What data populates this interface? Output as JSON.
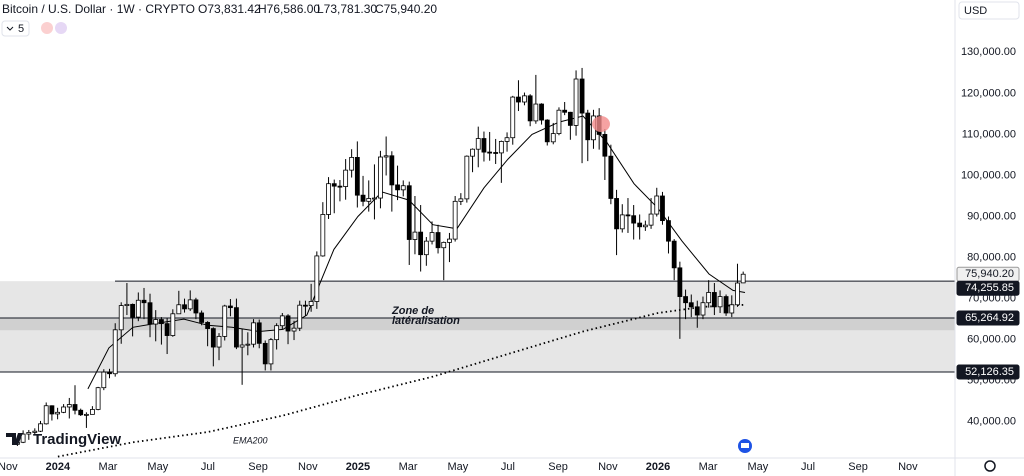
{
  "chart_data": {
    "type": "candlestick",
    "title": "Bitcoin / U.S. Dollar · 1W · CRYPTO",
    "ohlc_legend": [
      "O73,831.42",
      "H76,586.00",
      "L73,781.30",
      "C75,940.20"
    ],
    "indicator_count": 5,
    "currency": "USD",
    "brand": "TradingView",
    "zone_label": [
      "Zone de",
      "latéralisation"
    ],
    "up_color": "#ffffff",
    "down_color": "#000000",
    "x": [
      2023.865,
      2023.884,
      2023.903,
      2023.923,
      2023.942,
      2023.961,
      2023.98,
      2023.999,
      2024.019,
      2024.038,
      2024.057,
      2024.076,
      2024.095,
      2024.115,
      2024.134,
      2024.153,
      2024.172,
      2024.191,
      2024.211,
      2024.23,
      2024.249,
      2024.268,
      2024.287,
      2024.307,
      2024.326,
      2024.345,
      2024.364,
      2024.383,
      2024.403,
      2024.422,
      2024.441,
      2024.46,
      2024.479,
      2024.499,
      2024.518,
      2024.537,
      2024.556,
      2024.575,
      2024.595,
      2024.614,
      2024.633,
      2024.652,
      2024.671,
      2024.691,
      2024.71,
      2024.729,
      2024.748,
      2024.767,
      2024.787,
      2024.806,
      2024.825,
      2024.844,
      2024.863,
      2024.883,
      2024.902,
      2024.921,
      2024.94,
      2024.959,
      2024.979,
      2024.998,
      2025.017,
      2025.036,
      2025.055,
      2025.075,
      2025.094,
      2025.113,
      2025.132,
      2025.151,
      2025.171,
      2025.19,
      2025.209,
      2025.228,
      2025.247,
      2025.267,
      2025.286,
      2025.305,
      2025.324,
      2025.343,
      2025.363,
      2025.382,
      2025.401,
      2025.42,
      2025.439,
      2025.459,
      2025.478,
      2025.497,
      2025.516,
      2025.535,
      2025.555,
      2025.574,
      2025.593,
      2025.612,
      2025.631,
      2025.651,
      2025.67,
      2025.689,
      2025.708,
      2025.727,
      2025.747,
      2025.766,
      2025.785,
      2025.804,
      2025.823,
      2025.843,
      2025.862,
      2025.881,
      2025.9,
      2025.919,
      2025.939,
      2025.958,
      2025.977,
      2025.996,
      2026.015,
      2026.035,
      2026.054,
      2026.073,
      2026.092,
      2026.111,
      2026.131,
      2026.15,
      2026.169,
      2026.188,
      2026.207,
      2026.227,
      2026.246,
      2026.265,
      2026.284
    ],
    "open": [
      34500,
      35000,
      37000,
      37400,
      37700,
      39500,
      43900,
      41900,
      42300,
      43600,
      44200,
      42800,
      41700,
      41800,
      43000,
      48300,
      52100,
      51700,
      62400,
      68300,
      68600,
      65500,
      69600,
      69000,
      63800,
      64900,
      63900,
      61000,
      66300,
      68500,
      67500,
      69700,
      66500,
      64200,
      62700,
      58200,
      60800,
      68200,
      67800,
      58200,
      58700,
      58900,
      64100,
      59100,
      54100,
      60000,
      63400,
      65800,
      62100,
      62800,
      68400,
      68300,
      69300,
      80400,
      90500,
      98000,
      97400,
      97300,
      101300,
      104400,
      95200,
      93700,
      94400,
      94500,
      104500,
      104800,
      97700,
      96500,
      97500,
      84400,
      86200,
      80700,
      84000,
      86100,
      82400,
      83700,
      84500,
      93700,
      94300,
      104700,
      106400,
      109000,
      105700,
      105600,
      105500,
      108300,
      109200,
      119100,
      117900,
      119400,
      113300,
      117400,
      113500,
      108200,
      110200,
      115900,
      115400,
      112200,
      123500,
      115200,
      108700,
      114500,
      110000,
      104700,
      94400,
      87000,
      90400,
      90200,
      88400,
      87500,
      87900,
      90600,
      95000,
      89000,
      84000,
      77500,
      70500,
      69000,
      68000,
      66000,
      69000,
      71500,
      68000,
      70500,
      66500,
      68500,
      73831.42
    ],
    "high": [
      35900,
      37900,
      38000,
      38400,
      40200,
      44700,
      44000,
      43400,
      44300,
      45800,
      48900,
      43200,
      42300,
      43800,
      48500,
      52800,
      52900,
      64000,
      69100,
      73800,
      68800,
      71500,
      72600,
      71200,
      67200,
      65500,
      65200,
      67400,
      71900,
      70000,
      72000,
      70200,
      67100,
      64500,
      63000,
      61600,
      68500,
      69900,
      70000,
      62700,
      61800,
      65000,
      64900,
      59800,
      60400,
      64000,
      66500,
      66200,
      64600,
      69500,
      69500,
      73600,
      81500,
      93500,
      99600,
      99000,
      98900,
      104000,
      106400,
      108300,
      99900,
      98800,
      102700,
      106000,
      109500,
      105900,
      102400,
      98800,
      98500,
      95000,
      92800,
      85000,
      88800,
      88000,
      83900,
      86000,
      95000,
      95700,
      104900,
      106600,
      111900,
      110700,
      110600,
      108900,
      108500,
      110500,
      119400,
      123200,
      120200,
      119800,
      124500,
      117600,
      113700,
      112800,
      116600,
      117900,
      115500,
      125600,
      126200,
      116000,
      116000,
      116400,
      111300,
      107500,
      96500,
      93000,
      94500,
      92800,
      90500,
      89000,
      94500,
      97000,
      96000,
      90000,
      84500,
      79000,
      72200,
      71000,
      69500,
      70500,
      74500,
      73800,
      72000,
      71000,
      70800,
      78500,
      76586
    ],
    "low": [
      34100,
      34800,
      35600,
      36700,
      37500,
      39300,
      40300,
      40600,
      42100,
      40800,
      41800,
      41400,
      38500,
      41800,
      42800,
      47700,
      50600,
      51000,
      59000,
      66000,
      60800,
      64500,
      65000,
      60600,
      59600,
      58800,
      56500,
      60700,
      66300,
      66600,
      67000,
      65000,
      63500,
      58400,
      53500,
      55000,
      59800,
      65700,
      57700,
      49000,
      56200,
      58100,
      57900,
      52500,
      52500,
      57600,
      62500,
      58900,
      59900,
      62100,
      65800,
      66800,
      67500,
      80200,
      89400,
      90800,
      93700,
      94100,
      99500,
      92200,
      92500,
      91200,
      89300,
      92000,
      100000,
      91200,
      94000,
      94900,
      78200,
      80800,
      76600,
      78000,
      83200,
      81000,
      74500,
      78900,
      83900,
      92800,
      93400,
      100800,
      102000,
      103400,
      103600,
      102800,
      98200,
      105800,
      107500,
      115700,
      117100,
      112000,
      112600,
      112400,
      107300,
      107600,
      109800,
      114700,
      108700,
      109700,
      103000,
      103500,
      106500,
      106300,
      98900,
      93000,
      80600,
      86100,
      86000,
      84400,
      84400,
      86500,
      87000,
      90000,
      88000,
      81000,
      74500,
      60200,
      65000,
      65500,
      62900,
      65000,
      67800,
      66000,
      66500,
      65800,
      65500,
      68000,
      73781.3
    ],
    "close": [
      35000,
      37000,
      37400,
      37700,
      39500,
      43900,
      41900,
      42300,
      43600,
      44200,
      42800,
      41700,
      41800,
      43000,
      48300,
      52100,
      51700,
      62400,
      68300,
      68600,
      65500,
      69600,
      69000,
      63800,
      64900,
      63900,
      61000,
      66300,
      68500,
      67500,
      69700,
      66500,
      64200,
      62700,
      58200,
      60800,
      68200,
      67800,
      58200,
      58700,
      58900,
      64100,
      59100,
      54100,
      60000,
      63400,
      65800,
      62100,
      62800,
      68400,
      68300,
      69300,
      80400,
      90500,
      98000,
      97400,
      97300,
      101300,
      104400,
      95200,
      93700,
      94400,
      94500,
      104500,
      104800,
      97700,
      96500,
      97500,
      84400,
      86200,
      80700,
      84000,
      86100,
      82400,
      83700,
      84500,
      93700,
      94300,
      104700,
      106400,
      109000,
      105700,
      105600,
      105500,
      108300,
      109200,
      119100,
      117900,
      119400,
      113300,
      117400,
      113500,
      108200,
      110200,
      115900,
      115400,
      112200,
      123500,
      115200,
      108700,
      114500,
      110000,
      104700,
      94400,
      87000,
      90400,
      90200,
      88400,
      87500,
      87900,
      90600,
      95000,
      89000,
      84000,
      77500,
      70500,
      69000,
      68000,
      66000,
      69000,
      71500,
      68000,
      70500,
      66500,
      68500,
      73800,
      75940.2
    ],
    "ema": {
      "color": "#000000",
      "x": [
        2024.1,
        2024.17,
        2024.25,
        2024.33,
        2024.42,
        2024.5,
        2024.58,
        2024.67,
        2024.75,
        2024.83,
        2024.92,
        2025.0,
        2025.08,
        2025.17,
        2025.25,
        2025.33,
        2025.42,
        2025.5,
        2025.58,
        2025.67,
        2025.75,
        2025.83,
        2025.92,
        2026.0,
        2026.08,
        2026.17,
        2026.25,
        2026.29
      ],
      "values": [
        48000,
        58000,
        63000,
        64000,
        65000,
        63500,
        63000,
        62000,
        62500,
        66000,
        82000,
        90000,
        96000,
        94000,
        88000,
        87000,
        97000,
        104000,
        110000,
        113000,
        114500,
        108000,
        98000,
        92000,
        84000,
        76000,
        72000,
        71500
      ]
    },
    "ema200": {
      "name": "EMA200",
      "color": "#000000",
      "x": [
        2024.0,
        2024.25,
        2024.5,
        2024.75,
        2025.0,
        2025.25,
        2025.5,
        2025.75,
        2026.0,
        2026.15,
        2026.29
      ],
      "values": [
        31500,
        35000,
        37500,
        41500,
        46500,
        51000,
        56500,
        62000,
        66500,
        68000,
        68500
      ]
    },
    "last_price": {
      "value": 75940.2,
      "label": "75,940.20"
    },
    "hlines": [
      {
        "value": 74255.85,
        "label": "74,255.85"
      },
      {
        "value": 65264.92,
        "label": "65,264.92"
      },
      {
        "value": 52126.35,
        "label": "52,126.35"
      }
    ],
    "zones": [
      {
        "from": 52126.35,
        "to": 74255.85,
        "color": "#e6e6e6"
      },
      {
        "from": 62300,
        "to": 65264.92,
        "color": "#d0d0d0"
      }
    ],
    "xlim": [
      2023.807,
      2026.99
    ],
    "ylim": [
      31170,
      142750
    ],
    "xticks": [
      {
        "value": 2023.833,
        "label": "Nov"
      },
      {
        "value": 2024,
        "label": "2024"
      },
      {
        "value": 2024.167,
        "label": "Mar"
      },
      {
        "value": 2024.333,
        "label": "May"
      },
      {
        "value": 2024.5,
        "label": "Jul"
      },
      {
        "value": 2024.667,
        "label": "Sep"
      },
      {
        "value": 2024.833,
        "label": "Nov"
      },
      {
        "value": 2025,
        "label": "2025"
      },
      {
        "value": 2025.167,
        "label": "Mar"
      },
      {
        "value": 2025.333,
        "label": "May"
      },
      {
        "value": 2025.5,
        "label": "Jul"
      },
      {
        "value": 2025.667,
        "label": "Sep"
      },
      {
        "value": 2025.833,
        "label": "Nov"
      },
      {
        "value": 2026,
        "label": "2026"
      },
      {
        "value": 2026.167,
        "label": "Mar"
      },
      {
        "value": 2026.333,
        "label": "May"
      },
      {
        "value": 2026.5,
        "label": "Jul"
      },
      {
        "value": 2026.667,
        "label": "Sep"
      },
      {
        "value": 2026.833,
        "label": "Nov"
      }
    ],
    "yticks": [
      {
        "value": 40000,
        "label": "40,000.00"
      },
      {
        "value": 50000,
        "label": "50,000.00"
      },
      {
        "value": 60000,
        "label": "60,000.00"
      },
      {
        "value": 70000,
        "label": "70,000.00"
      },
      {
        "value": 80000,
        "label": "80,000.00"
      },
      {
        "value": 90000,
        "label": "90,000.00"
      },
      {
        "value": 100000,
        "label": "100,000.00"
      },
      {
        "value": 110000,
        "label": "110,000.00"
      },
      {
        "value": 120000,
        "label": "120,000.00"
      },
      {
        "value": 130000,
        "label": "130,000.00"
      }
    ]
  }
}
